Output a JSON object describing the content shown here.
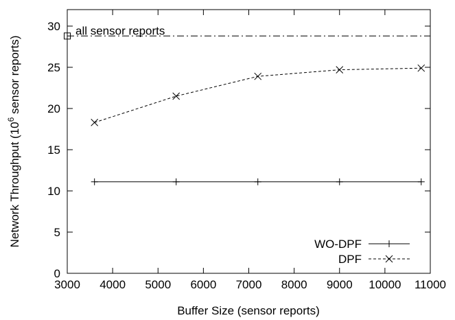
{
  "chart_data": {
    "type": "line",
    "xlabel": "Buffer Size (sensor reports)",
    "ylabel_prefix": "Network Throughput (10",
    "ylabel_exp": "6",
    "ylabel_suffix": " sensor reports)",
    "xlim": [
      3000,
      11000
    ],
    "ylim": [
      0,
      32
    ],
    "xticks": [
      3000,
      4000,
      5000,
      6000,
      7000,
      8000,
      9000,
      10000,
      11000
    ],
    "yticks": [
      0,
      5,
      10,
      15,
      20,
      25,
      30
    ],
    "grid": false,
    "legend_position": "bottom-right",
    "series": [
      {
        "name": "WO-DPF",
        "style": "solid",
        "marker": "plus",
        "x": [
          3600,
          5400,
          7200,
          9000,
          10800
        ],
        "y": [
          11.1,
          11.1,
          11.1,
          11.1,
          11.1
        ]
      },
      {
        "name": "DPF",
        "style": "dashed",
        "marker": "cross",
        "x": [
          3600,
          5400,
          7200,
          9000,
          10800
        ],
        "y": [
          18.3,
          21.5,
          23.9,
          24.7,
          24.9
        ]
      }
    ],
    "reference_line": {
      "label": "all sensor reports",
      "y": 28.8,
      "style": "dash-dot",
      "marker": "square",
      "marker_x": 3000
    }
  }
}
